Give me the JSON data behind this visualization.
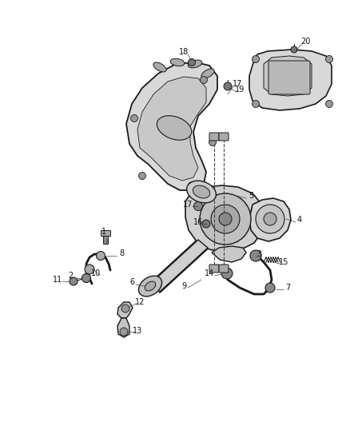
{
  "bg_color": "#ffffff",
  "lc": "#1a1a1a",
  "gray1": "#d0d0d0",
  "gray2": "#b8b8b8",
  "gray3": "#888888",
  "gray4": "#c8c8c8",
  "gray5": "#e0e0e0"
}
